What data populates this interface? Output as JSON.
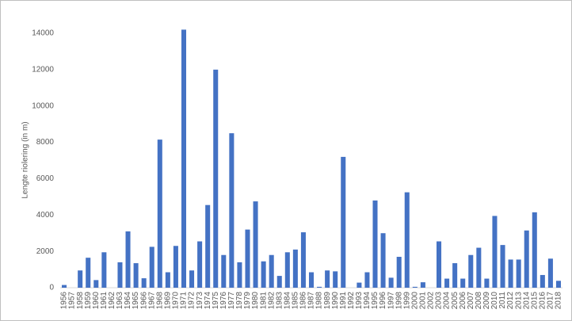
{
  "chart_data": {
    "type": "bar",
    "y_label": "Lengte riolering (in m)",
    "categories": [
      "1956",
      "1957",
      "1958",
      "1959",
      "1960",
      "1961",
      "1962",
      "1963",
      "1964",
      "1965",
      "1966",
      "1967",
      "1968",
      "1969",
      "1970",
      "1971",
      "1972",
      "1973",
      "1974",
      "1975",
      "1976",
      "1977",
      "1978",
      "1979",
      "1980",
      "1981",
      "1982",
      "1983",
      "1984",
      "1985",
      "1986",
      "1987",
      "1988",
      "1989",
      "1990",
      "1991",
      "1992",
      "1993",
      "1994",
      "1995",
      "1996",
      "1997",
      "1998",
      "1999",
      "2000",
      "2001",
      "2002",
      "2003",
      "2004",
      "2005",
      "2006",
      "2007",
      "2008",
      "2009",
      "2010",
      "2011",
      "2012",
      "2013",
      "2014",
      "2015",
      "2016",
      "2017",
      "2018"
    ],
    "values": [
      150,
      0,
      950,
      1650,
      420,
      1950,
      0,
      1400,
      3100,
      1350,
      520,
      2250,
      8150,
      850,
      2300,
      14200,
      950,
      2550,
      4550,
      12000,
      1800,
      8500,
      1400,
      3200,
      4750,
      1450,
      1800,
      650,
      1950,
      2100,
      3050,
      850,
      50,
      950,
      900,
      7200,
      0,
      280,
      850,
      4800,
      3000,
      550,
      1700,
      5250,
      50,
      300,
      0,
      2550,
      500,
      1350,
      500,
      1800,
      2200,
      500,
      3950,
      2350,
      1550,
      1550,
      3150,
      4150,
      700,
      1600,
      380
    ],
    "color": "#4472c4",
    "ylim": [
      0,
      14000
    ],
    "yticks": [
      0,
      2000,
      4000,
      6000,
      8000,
      10000,
      12000,
      14000
    ],
    "grid": false
  }
}
